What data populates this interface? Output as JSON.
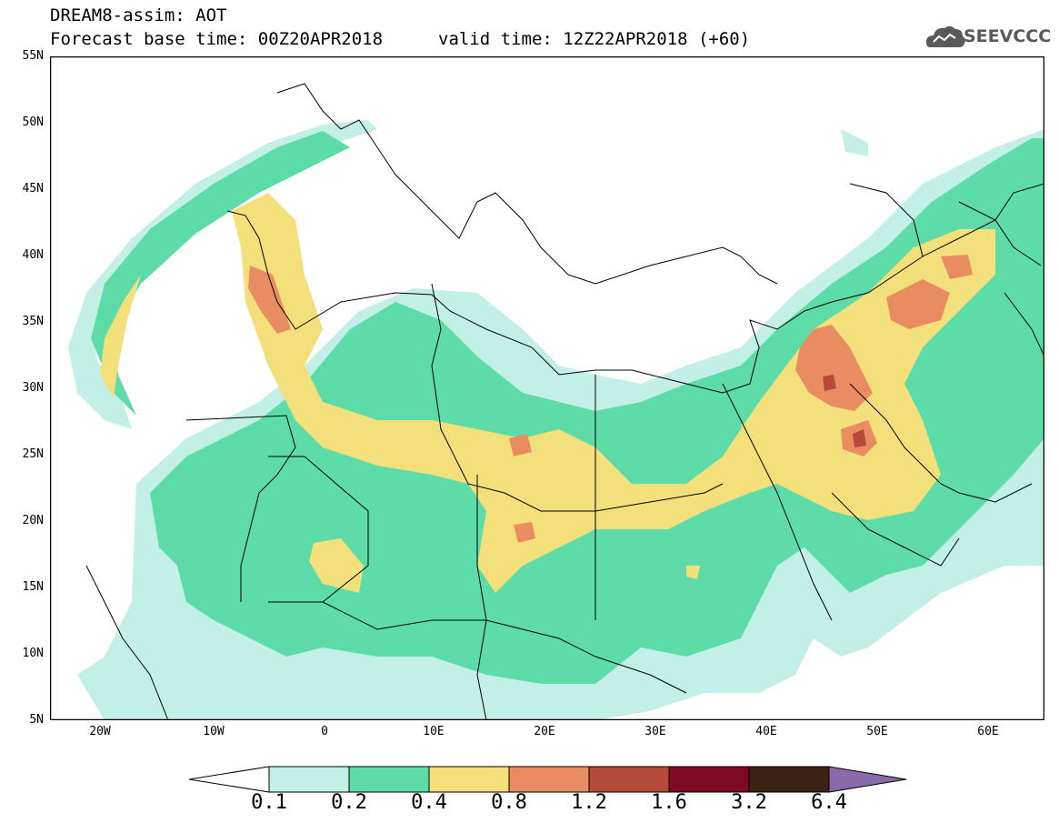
{
  "header": {
    "line1": "DREAM8-assim: AOT",
    "line2": "Forecast base time: 00Z20APR2018",
    "valid": "valid time: 12Z22APR2018 (+60)"
  },
  "logo": {
    "text": "SEEVCCC",
    "icon": "cloud-icon"
  },
  "map": {
    "lat_labels": [
      "55N",
      "50N",
      "45N",
      "40N",
      "35N",
      "30N",
      "25N",
      "20N",
      "15N",
      "10N",
      "5N"
    ],
    "lon_labels": [
      "20W",
      "10W",
      "0",
      "10E",
      "20E",
      "30E",
      "40E",
      "50E",
      "60E"
    ],
    "lat_range": [
      5,
      55
    ],
    "lon_range": [
      -25,
      65
    ]
  },
  "legend": {
    "labels": [
      "0.1",
      "0.2",
      "0.4",
      "0.8",
      "1.2",
      "1.6",
      "3.2",
      "6.4"
    ],
    "colors": [
      "#ffffff",
      "#c2efe6",
      "#5ddcaa",
      "#f4e07a",
      "#e98c62",
      "#b54a3a",
      "#7d0a22",
      "#3c2414",
      "#8a6aa8"
    ]
  }
}
